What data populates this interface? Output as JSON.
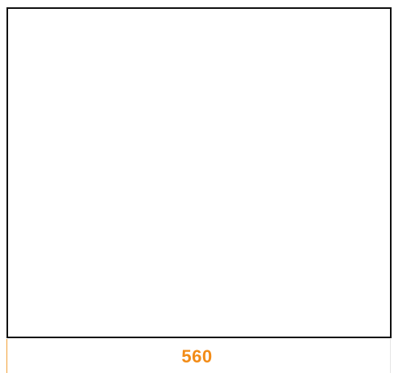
{
  "diagram": {
    "dimension_label": "560",
    "colors": {
      "outline": "#111111",
      "dimension": "#f28c18",
      "dimension_tick": "#f2a23a",
      "background": "#ffffff"
    }
  }
}
